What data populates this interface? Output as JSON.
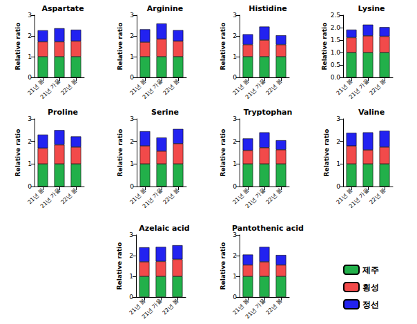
{
  "chart_data": [
    {
      "type": "bar",
      "title": "Aspartate",
      "ylabel": "Relative ratio",
      "stacked": true,
      "grid": false,
      "categories": [
        "21년 봄",
        "21년 가을",
        "22년 봄"
      ],
      "series": [
        {
          "name": "제주",
          "color": "#22b04a",
          "values": [
            1,
            1,
            1
          ]
        },
        {
          "name": "횡성",
          "color": "#f24a4a",
          "values": [
            0.72,
            0.72,
            0.75
          ]
        },
        {
          "name": "정선",
          "color": "#2222f0",
          "values": [
            0.55,
            0.65,
            0.55
          ]
        }
      ],
      "ylim": [
        0,
        3
      ],
      "yticks": [
        0,
        1,
        2,
        3
      ]
    },
    {
      "type": "bar",
      "title": "Arginine",
      "ylabel": "Relative ratio",
      "stacked": true,
      "grid": false,
      "categories": [
        "21년 봄",
        "21년 가을",
        "22년 봄"
      ],
      "series": [
        {
          "name": "제주",
          "color": "#22b04a",
          "values": [
            1,
            1,
            1
          ]
        },
        {
          "name": "횡성",
          "color": "#f24a4a",
          "values": [
            0.7,
            0.85,
            0.75
          ]
        },
        {
          "name": "정선",
          "color": "#2222f0",
          "values": [
            0.62,
            0.75,
            0.53
          ]
        }
      ],
      "ylim": [
        0,
        3
      ],
      "yticks": [
        0,
        1,
        2,
        3
      ]
    },
    {
      "type": "bar",
      "title": "Histidine",
      "ylabel": "Relative ratio",
      "stacked": true,
      "grid": false,
      "categories": [
        "21년 봄",
        "21년 가을",
        "22년 봄"
      ],
      "series": [
        {
          "name": "제주",
          "color": "#22b04a",
          "values": [
            1,
            1,
            1
          ]
        },
        {
          "name": "횡성",
          "color": "#f24a4a",
          "values": [
            0.58,
            0.8,
            0.58
          ]
        },
        {
          "name": "정선",
          "color": "#2222f0",
          "values": [
            0.5,
            0.65,
            0.45
          ]
        }
      ],
      "ylim": [
        0,
        3
      ],
      "yticks": [
        0,
        1,
        2,
        3
      ]
    },
    {
      "type": "bar",
      "title": "Lysine",
      "ylabel": "Relative ratio",
      "stacked": true,
      "grid": false,
      "categories": [
        "21년 봄",
        "21년 가을",
        "22년 봄"
      ],
      "series": [
        {
          "name": "제주",
          "color": "#22b04a",
          "values": [
            1,
            1,
            1
          ]
        },
        {
          "name": "횡성",
          "color": "#f24a4a",
          "values": [
            0.6,
            0.67,
            0.65
          ]
        },
        {
          "name": "정선",
          "color": "#2222f0",
          "values": [
            0.32,
            0.45,
            0.37
          ]
        }
      ],
      "ylim": [
        0,
        2.5
      ],
      "yticks": [
        {
          "value": 0,
          "label": "0.0"
        },
        0.5,
        {
          "value": 1,
          "label": "1.0"
        },
        1.5,
        {
          "value": 2,
          "label": "2.0"
        },
        2.5
      ]
    },
    {
      "type": "bar",
      "title": "Proline",
      "ylabel": "Relative ratio",
      "stacked": true,
      "grid": false,
      "categories": [
        "21년 봄",
        "21년 가을",
        "22년 봄"
      ],
      "series": [
        {
          "name": "제주",
          "color": "#22b04a",
          "values": [
            1,
            1,
            1
          ]
        },
        {
          "name": "횡성",
          "color": "#f24a4a",
          "values": [
            0.7,
            0.85,
            0.75
          ]
        },
        {
          "name": "정선",
          "color": "#2222f0",
          "values": [
            0.6,
            0.65,
            0.47
          ]
        }
      ],
      "ylim": [
        0,
        3
      ],
      "yticks": [
        0,
        1,
        2,
        3
      ]
    },
    {
      "type": "bar",
      "title": "Serine",
      "ylabel": "Relative ratio",
      "stacked": true,
      "grid": false,
      "categories": [
        "21년 봄",
        "21년 가을",
        "22년 봄"
      ],
      "series": [
        {
          "name": "제주",
          "color": "#22b04a",
          "values": [
            1,
            1,
            1
          ]
        },
        {
          "name": "횡성",
          "color": "#f24a4a",
          "values": [
            0.8,
            0.57,
            0.9
          ]
        },
        {
          "name": "정선",
          "color": "#2222f0",
          "values": [
            0.65,
            0.6,
            0.65
          ]
        }
      ],
      "ylim": [
        0,
        3
      ],
      "yticks": [
        0,
        1,
        2,
        3
      ]
    },
    {
      "type": "bar",
      "title": "Tryptophan",
      "ylabel": "Relative ratio",
      "stacked": true,
      "grid": false,
      "categories": [
        "21년 봄",
        "21년 가을",
        "22년 봄"
      ],
      "series": [
        {
          "name": "제주",
          "color": "#22b04a",
          "values": [
            1,
            1,
            1
          ]
        },
        {
          "name": "횡성",
          "color": "#f24a4a",
          "values": [
            0.6,
            0.72,
            0.63
          ]
        },
        {
          "name": "정선",
          "color": "#2222f0",
          "values": [
            0.53,
            0.68,
            0.42
          ]
        }
      ],
      "ylim": [
        0,
        3
      ],
      "yticks": [
        0,
        1,
        2,
        3
      ]
    },
    {
      "type": "bar",
      "title": "Valine",
      "ylabel": "Relative ratio",
      "stacked": true,
      "grid": false,
      "categories": [
        "21년 봄",
        "21년 가을",
        "22년 봄"
      ],
      "series": [
        {
          "name": "제주",
          "color": "#22b04a",
          "values": [
            1,
            1,
            1
          ]
        },
        {
          "name": "횡성",
          "color": "#f24a4a",
          "values": [
            0.8,
            0.62,
            0.75
          ]
        },
        {
          "name": "정선",
          "color": "#2222f0",
          "values": [
            0.58,
            0.78,
            0.72
          ]
        }
      ],
      "ylim": [
        0,
        3
      ],
      "yticks": [
        0,
        1,
        2,
        3
      ]
    },
    {
      "type": "bar",
      "title": "Azelaic acid",
      "ylabel": "Relative ratio",
      "stacked": true,
      "grid": false,
      "categories": [
        "21년 봄",
        "21년 가을",
        "22년 봄"
      ],
      "series": [
        {
          "name": "제주",
          "color": "#22b04a",
          "values": [
            1,
            1,
            1
          ]
        },
        {
          "name": "횡성",
          "color": "#f24a4a",
          "values": [
            0.7,
            0.72,
            0.82
          ]
        },
        {
          "name": "정선",
          "color": "#2222f0",
          "values": [
            0.7,
            0.7,
            0.68
          ]
        }
      ],
      "ylim": [
        0,
        3
      ],
      "yticks": [
        0,
        1,
        2,
        3
      ]
    },
    {
      "type": "bar",
      "title": "Pantothenic acid",
      "ylabel": "Relative ratio",
      "stacked": true,
      "grid": false,
      "legend": "right",
      "categories": [
        "21년 봄",
        "21년 가을",
        "22년 봄"
      ],
      "series": [
        {
          "name": "제주",
          "color": "#22b04a",
          "values": [
            1,
            1,
            1
          ]
        },
        {
          "name": "횡성",
          "color": "#f24a4a",
          "values": [
            0.55,
            0.7,
            0.55
          ]
        },
        {
          "name": "정선",
          "color": "#2222f0",
          "values": [
            0.5,
            0.72,
            0.48
          ]
        }
      ],
      "ylim": [
        0,
        3
      ],
      "yticks": [
        0,
        1,
        2,
        3
      ]
    }
  ]
}
